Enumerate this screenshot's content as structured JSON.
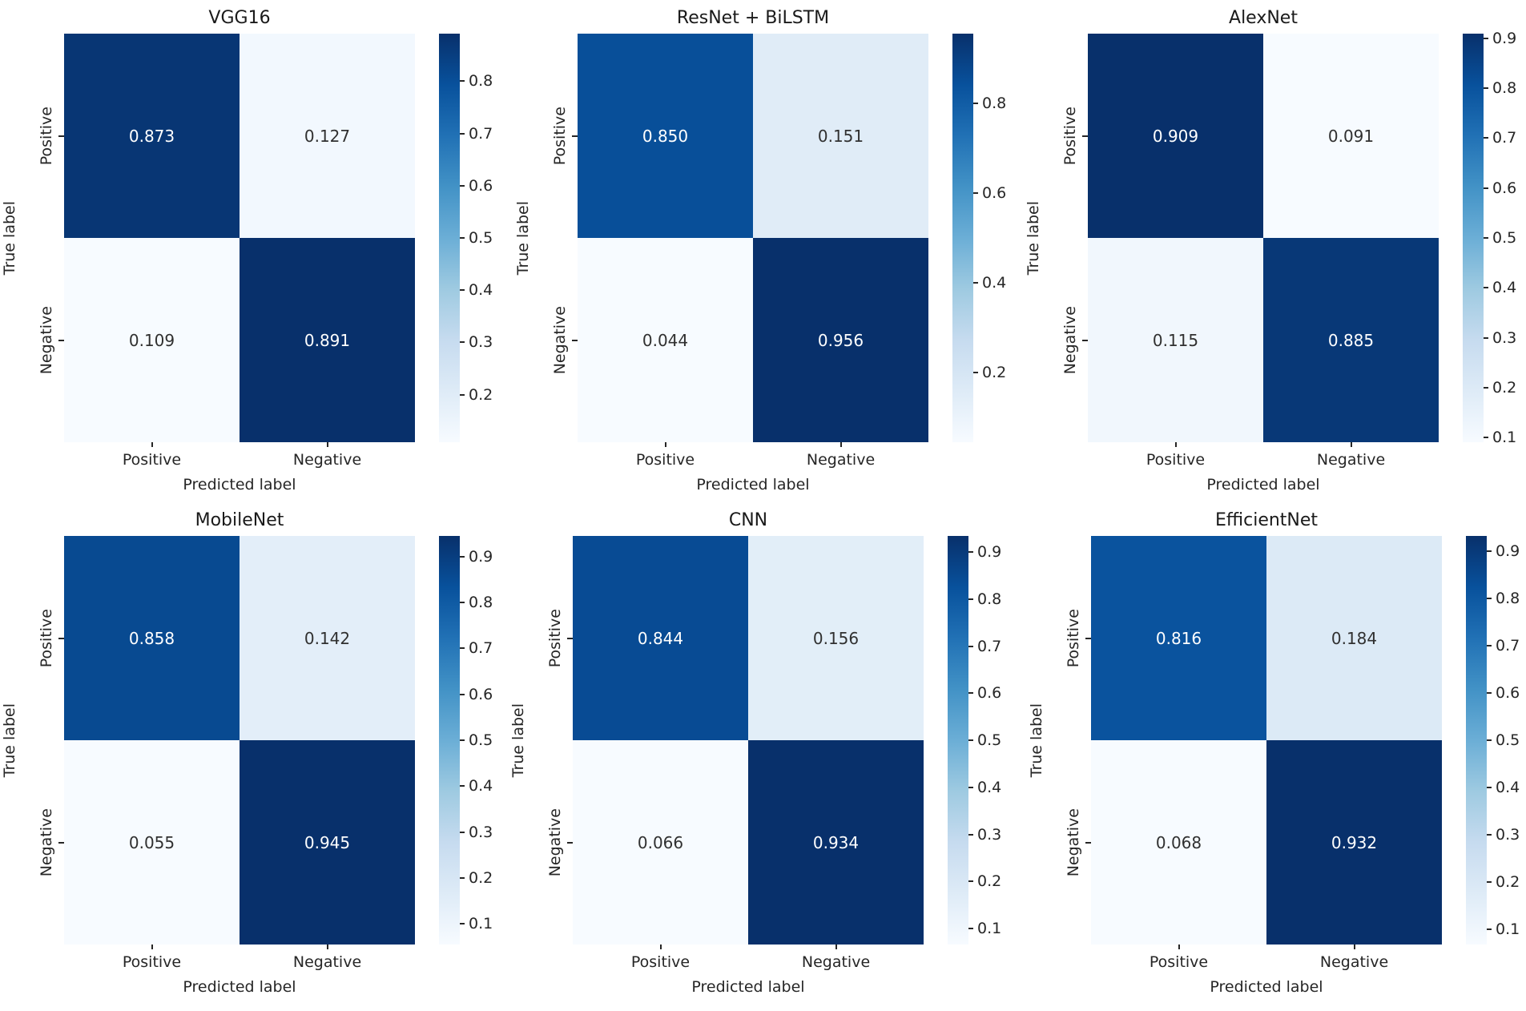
{
  "colors": {
    "background": "#ffffff",
    "title_text": "#1a1a1a",
    "axis_text": "#262626",
    "annotation_on_light_cell": "#303030",
    "annotation_on_dark_cell": "#ffffff",
    "blues_colormap_stops": [
      "#f7fbff",
      "#deebf7",
      "#c6dbef",
      "#9ecae1",
      "#6baed6",
      "#4292c6",
      "#2171b5",
      "#08519c",
      "#08306b"
    ]
  },
  "chart_data": [
    {
      "type": "heatmap",
      "title": "VGG16",
      "xlabel": "Predicted label",
      "ylabel": "True label",
      "x_categories": [
        "Positive",
        "Negative"
      ],
      "y_categories": [
        "Positive",
        "Negative"
      ],
      "values": [
        [
          0.873,
          0.127
        ],
        [
          0.109,
          0.891
        ]
      ],
      "cell_labels": [
        [
          "0.873",
          "0.127"
        ],
        [
          "0.109",
          "0.891"
        ]
      ],
      "colormap": "Blues",
      "colorbar_position": "right",
      "colorbar_ticks": [
        0.8,
        0.7,
        0.6,
        0.5,
        0.4,
        0.3,
        0.2
      ]
    },
    {
      "type": "heatmap",
      "title": "ResNet + BiLSTM",
      "xlabel": "Predicted label",
      "ylabel": "True label",
      "x_categories": [
        "Positive",
        "Negative"
      ],
      "y_categories": [
        "Positive",
        "Negative"
      ],
      "values": [
        [
          0.85,
          0.151
        ],
        [
          0.044,
          0.956
        ]
      ],
      "cell_labels": [
        [
          "0.850",
          "0.151"
        ],
        [
          "0.044",
          "0.956"
        ]
      ],
      "colormap": "Blues",
      "colorbar_position": "right",
      "colorbar_ticks": [
        0.8,
        0.6,
        0.4,
        0.2
      ]
    },
    {
      "type": "heatmap",
      "title": "AlexNet",
      "xlabel": "Predicted label",
      "ylabel": "True label",
      "x_categories": [
        "Positive",
        "Negative"
      ],
      "y_categories": [
        "Positive",
        "Negative"
      ],
      "values": [
        [
          0.909,
          0.091
        ],
        [
          0.115,
          0.885
        ]
      ],
      "cell_labels": [
        [
          "0.909",
          "0.091"
        ],
        [
          "0.115",
          "0.885"
        ]
      ],
      "colormap": "Blues",
      "colorbar_position": "right",
      "colorbar_ticks": [
        0.9,
        0.8,
        0.7,
        0.6,
        0.5,
        0.4,
        0.3,
        0.2,
        0.1
      ]
    },
    {
      "type": "heatmap",
      "title": "MobileNet",
      "xlabel": "Predicted label",
      "ylabel": "True label",
      "x_categories": [
        "Positive",
        "Negative"
      ],
      "y_categories": [
        "Positive",
        "Negative"
      ],
      "values": [
        [
          0.858,
          0.142
        ],
        [
          0.055,
          0.945
        ]
      ],
      "cell_labels": [
        [
          "0.858",
          "0.142"
        ],
        [
          "0.055",
          "0.945"
        ]
      ],
      "colormap": "Blues",
      "colorbar_position": "right",
      "colorbar_ticks": [
        0.9,
        0.8,
        0.7,
        0.6,
        0.5,
        0.4,
        0.3,
        0.2,
        0.1
      ]
    },
    {
      "type": "heatmap",
      "title": "CNN",
      "xlabel": "Predicted label",
      "ylabel": "True label",
      "x_categories": [
        "Positive",
        "Negative"
      ],
      "y_categories": [
        "Positive",
        "Negative"
      ],
      "values": [
        [
          0.844,
          0.156
        ],
        [
          0.066,
          0.934
        ]
      ],
      "cell_labels": [
        [
          "0.844",
          "0.156"
        ],
        [
          "0.066",
          "0.934"
        ]
      ],
      "colormap": "Blues",
      "colorbar_position": "right",
      "colorbar_ticks": [
        0.9,
        0.8,
        0.7,
        0.6,
        0.5,
        0.4,
        0.3,
        0.2,
        0.1
      ]
    },
    {
      "type": "heatmap",
      "title": "EfficientNet",
      "xlabel": "Predicted label",
      "ylabel": "True label",
      "x_categories": [
        "Positive",
        "Negative"
      ],
      "y_categories": [
        "Positive",
        "Negative"
      ],
      "values": [
        [
          0.816,
          0.184
        ],
        [
          0.068,
          0.932
        ]
      ],
      "cell_labels": [
        [
          "0.816",
          "0.184"
        ],
        [
          "0.068",
          "0.932"
        ]
      ],
      "colormap": "Blues",
      "colorbar_position": "right",
      "colorbar_ticks": [
        0.9,
        0.8,
        0.7,
        0.6,
        0.5,
        0.4,
        0.3,
        0.2,
        0.1
      ]
    }
  ]
}
